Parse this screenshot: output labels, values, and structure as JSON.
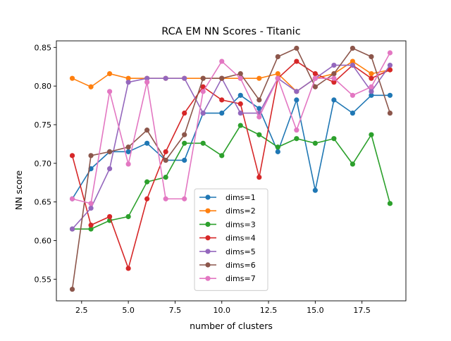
{
  "chart_data": {
    "type": "line",
    "title": "RCA EM NN Scores - Titanic",
    "xlabel": "number of clusters",
    "ylabel": "NN score",
    "xlim": [
      1.15,
      19.85
    ],
    "ylim": [
      0.522,
      0.8585
    ],
    "xticks": [
      2.5,
      5.0,
      7.5,
      10.0,
      12.5,
      15.0,
      17.5
    ],
    "xtick_labels": [
      "2.5",
      "5.0",
      "7.5",
      "10.0",
      "12.5",
      "15.0",
      "17.5"
    ],
    "yticks": [
      0.55,
      0.6,
      0.65,
      0.7,
      0.75,
      0.8,
      0.85
    ],
    "ytick_labels": [
      "0.55",
      "0.60",
      "0.65",
      "0.70",
      "0.75",
      "0.80",
      "0.85"
    ],
    "grid": false,
    "legend": "lower center",
    "x": [
      2,
      3,
      4,
      5,
      6,
      7,
      8,
      9,
      10,
      11,
      12,
      13,
      14,
      15,
      16,
      17,
      18,
      19
    ],
    "series": [
      {
        "name": "dims=1",
        "color": "#1f77b4",
        "values": [
          0.654,
          0.693,
          0.715,
          0.715,
          0.726,
          0.704,
          0.704,
          0.765,
          0.765,
          0.788,
          0.771,
          0.715,
          0.782,
          0.665,
          0.782,
          0.765,
          0.788,
          0.788
        ]
      },
      {
        "name": "dims=2",
        "color": "#ff7f0e",
        "values": [
          0.81,
          0.799,
          0.816,
          0.81,
          0.81,
          0.81,
          0.81,
          0.81,
          0.81,
          0.81,
          0.81,
          0.816,
          0.793,
          0.81,
          0.816,
          0.832,
          0.816,
          0.821
        ]
      },
      {
        "name": "dims=3",
        "color": "#2ca02c",
        "values": [
          0.615,
          0.615,
          0.626,
          0.631,
          0.676,
          0.682,
          0.726,
          0.726,
          0.71,
          0.749,
          0.737,
          0.721,
          0.732,
          0.726,
          0.732,
          0.699,
          0.737,
          0.648
        ]
      },
      {
        "name": "dims=4",
        "color": "#d62728",
        "values": [
          0.71,
          0.62,
          0.631,
          0.564,
          0.654,
          0.715,
          0.765,
          0.799,
          0.782,
          0.777,
          0.682,
          0.81,
          0.832,
          0.816,
          0.805,
          0.827,
          0.81,
          0.821
        ]
      },
      {
        "name": "dims=5",
        "color": "#9467bd",
        "values": [
          0.615,
          0.642,
          0.693,
          0.805,
          0.81,
          0.81,
          0.81,
          0.765,
          0.81,
          0.765,
          0.765,
          0.81,
          0.793,
          0.81,
          0.827,
          0.827,
          0.793,
          0.827
        ]
      },
      {
        "name": "dims=6",
        "color": "#8c564b",
        "values": [
          0.537,
          0.71,
          0.715,
          0.721,
          0.743,
          0.704,
          0.737,
          0.81,
          0.81,
          0.816,
          0.782,
          0.838,
          0.849,
          0.799,
          0.816,
          0.849,
          0.838,
          0.765
        ]
      },
      {
        "name": "dims=7",
        "color": "#e377c2",
        "values": [
          0.654,
          0.648,
          0.793,
          0.699,
          0.805,
          0.654,
          0.654,
          0.793,
          0.832,
          0.81,
          0.76,
          0.81,
          0.743,
          0.81,
          0.81,
          0.788,
          0.799,
          0.843
        ]
      }
    ]
  }
}
